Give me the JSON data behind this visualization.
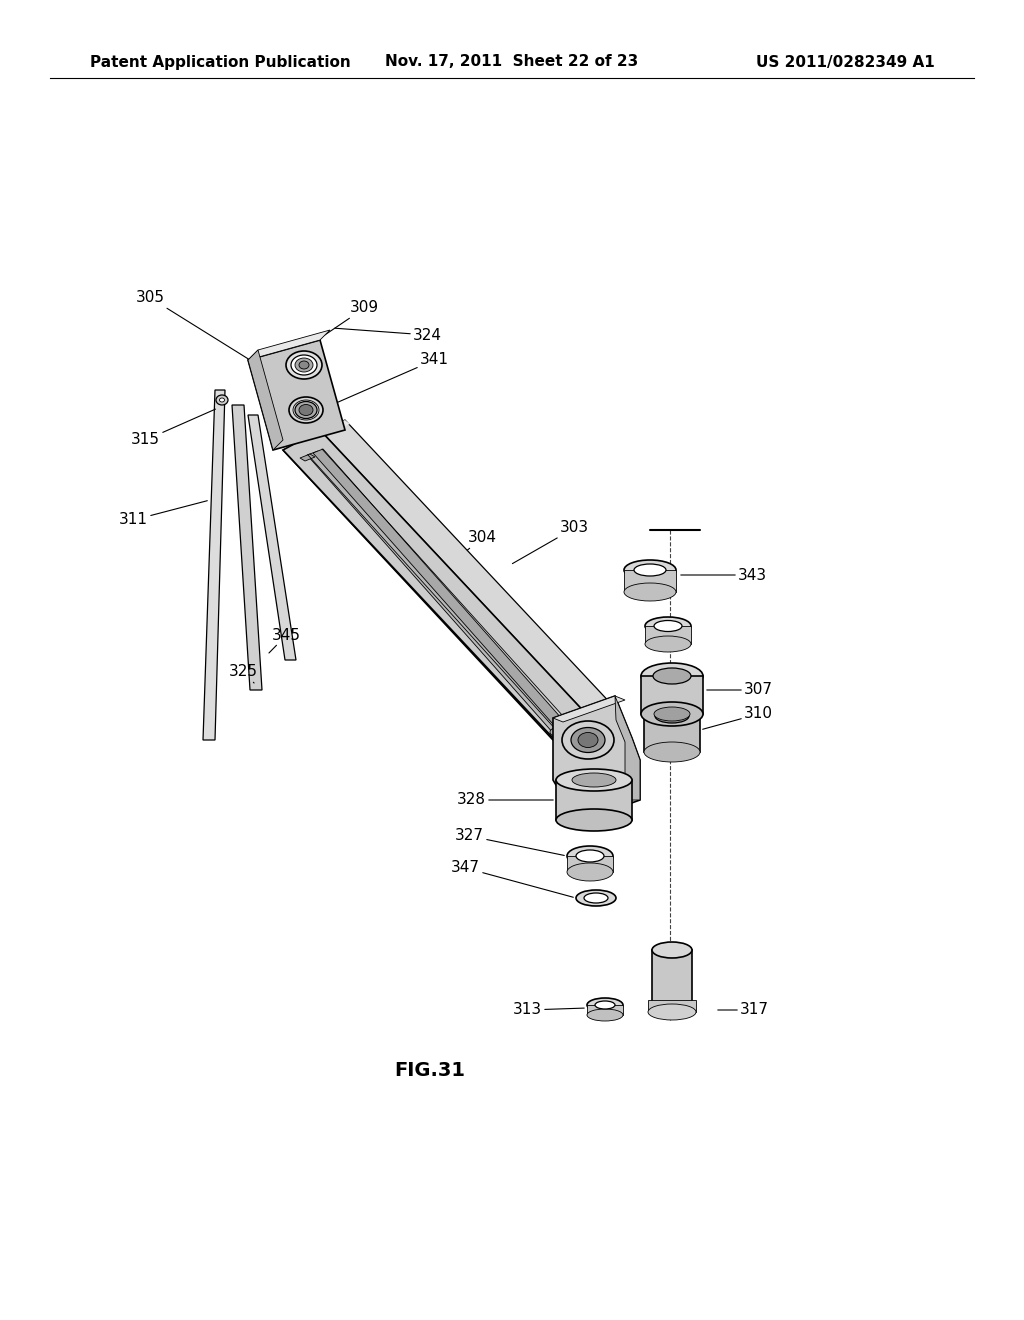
{
  "bg_color": "#ffffff",
  "header_left": "Patent Application Publication",
  "header_mid": "Nov. 17, 2011  Sheet 22 of 23",
  "header_right": "US 2011/0282349 A1",
  "figure_label": "FIG.31",
  "line_color": "#000000",
  "text_color": "#000000",
  "font_size_header": 11,
  "font_size_label": 11,
  "font_size_fig": 14
}
